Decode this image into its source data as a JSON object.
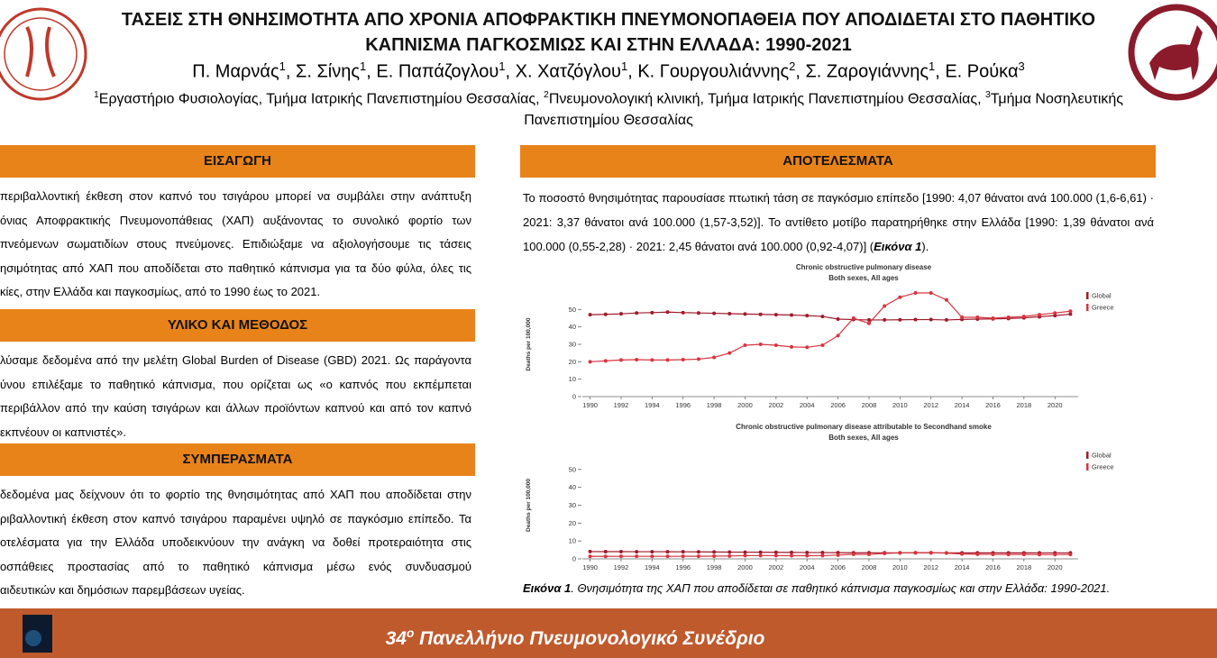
{
  "header": {
    "title": "ΤΑΣΕΙΣ ΣΤΗ ΘΝΗΣΙΜΟΤΗΤΑ ΑΠΟ ΧΡΟΝΙΑ ΑΠΟΦΡΑΚΤΙΚΗ ΠΝΕΥΜΟΝΟΠΑΘΕΙΑ ΠΟΥ ΑΠΟΔΙΔΕΤΑΙ ΣΤΟ ΠΑΘΗΤΙΚΟ ΚΑΠΝΙΣΜΑ ΠΑΓΚΟΣΜΙΩΣ ΚΑΙ ΣΤΗΝ ΕΛΛΑΔΑ: 1990-2021",
    "authors": [
      {
        "name": "Π. Μαρνάς",
        "sup": "1",
        "after": ","
      },
      {
        "name": "Σ. Σίνης",
        "sup": "1",
        "after": ","
      },
      {
        "name": "Ε. Παπάζογλου",
        "sup": "1",
        "after": ","
      },
      {
        "name": "Χ. Χατζόγλου",
        "sup": "1",
        "after": ","
      },
      {
        "name": "Κ. Γουργουλιάννης",
        "sup": "2",
        "after": ","
      },
      {
        "name": "Σ. Ζαρογιάννης",
        "sup": "1",
        "after": ","
      },
      {
        "name": "Ε. Ρούκα",
        "sup": "3"
      }
    ],
    "affiliations": [
      {
        "sup": "1",
        "text": "Εργαστήριο Φυσιολογίας, Τμήμα Ιατρικής Πανεπιστημίου Θεσσαλίας,"
      },
      {
        "sup": "2",
        "text": "Πνευμονολογική κλινική, Τμήμα Ιατρικής Πανεπιστημίου Θεσσαλίας,"
      },
      {
        "sup": "3",
        "text": "Τμήμα Νοσηλευτικής Πανεπιστημίου Θεσσαλίας"
      }
    ]
  },
  "sections": [
    {
      "heading": "ΕΙΣΑΓΩΓΗ",
      "lines": [
        "περιβαλλοντική έκθεση στον καπνό του τσιγάρου μπορεί να συμβάλει στην ανάπτυξη",
        "όνιας Αποφρακτικής Πνευμονοπάθειας (ΧΑΠ) αυξάνοντας το συνολικό φορτίο των",
        "πνεόμενων σωματιδίων στους πνεύμονες. Επιδιώξαμε να αξιολογήσουμε τις τάσεις",
        "ησιμότητας από ΧΑΠ που αποδίδεται στο παθητικό κάπνισμα για τα δύο φύλα, όλες τις",
        "κίες, στην Ελλάδα και παγκοσμίως, από το 1990 έως το 2021."
      ]
    },
    {
      "heading": "ΥΛΙΚΟ ΚΑΙ ΜΕΘΟΔΟΣ",
      "lines": [
        "λύσαμε δεδομένα από την μελέτη Global Burden of Disease (GBD) 2021. Ως παράγοντα",
        "ύνου επιλέξαμε το παθητικό κάπνισμα, που ορίζεται ως «ο καπνός που εκπέμπεται",
        "περιβάλλον από την καύση τσιγάρων και άλλων προϊόντων καπνού και από τον καπνό",
        "εκπνέουν οι καπνιστές»."
      ]
    },
    {
      "heading": "ΣΥΜΠΕΡΑΣΜΑΤΑ",
      "lines": [
        "δεδομένα μας δείχνουν ότι το φορτίο της θνησιμότητας από ΧΑΠ που αποδίδεται στην",
        "ριβαλλοντική έκθεση στον καπνό τσιγάρου παραμένει υψηλό σε παγκόσμιο επίπεδο. Τα",
        "οτελέσματα για την Ελλάδα υποδεικνύουν την ανάγκη να δοθεί προτεραιότητα στις",
        "οσπάθειες προστασίας από το παθητικό κάπνισμα μέσω ενός συνδυασμού",
        "αιδευτικών και δημόσιων παρεμβάσεων υγείας."
      ]
    }
  ],
  "results": {
    "heading": "ΑΠΟΤΕΛΕΣΜΑΤΑ",
    "text": "Το ποσοστό θνησιμότητας παρουσίασε πτωτική τάση σε παγκόσμιο επίπεδο [1990: 4,07 θάνατοι ανά 100.000 (1,6-6,61)  · 2021: 3,37 θάνατοι ανά 100.000 (1,57-3,52)]. Το αντίθετο μοτίβο παρατηρήθηκε στην Ελλάδα [1990: 1,39 θάνατοι ανά 100.000 (0,55-2,28) · 2021: 2,45 θάνατοι ανά 100.000 (0,92-4,07)] (",
    "emph": "Εικόνα 1",
    "after": ")."
  },
  "caption": {
    "label": "Εικόνα 1",
    "text": ". Θνησιμότητα της ΧΑΠ που αποδίδεται σε παθητικό κάπνισμα παγκοσμίως και στην Ελλάδα: 1990-2021."
  },
  "footer": {
    "number": "34",
    "sup": "ο",
    "text": "Πανελλήνιο Πνευμονολογικό Συνέδριο"
  },
  "chart_data": [
    {
      "type": "line",
      "title": "Chronic obstructive pulmonary disease",
      "subtitle": "Both sexes, All ages",
      "y_label": "Deaths per 100,000",
      "x": [
        1990,
        1991,
        1992,
        1993,
        1994,
        1995,
        1996,
        1997,
        1998,
        1999,
        2000,
        2001,
        2002,
        2003,
        2004,
        2005,
        2006,
        2007,
        2008,
        2009,
        2010,
        2011,
        2012,
        2013,
        2014,
        2015,
        2016,
        2017,
        2018,
        2019,
        2020,
        2021
      ],
      "xlim": [
        1989.5,
        2021.5
      ],
      "xticks": [
        1990,
        1992,
        1994,
        1996,
        1998,
        2000,
        2002,
        2004,
        2006,
        2008,
        2010,
        2012,
        2014,
        2016,
        2018,
        2020
      ],
      "ylim": [
        0,
        60
      ],
      "yticks": [
        0,
        10,
        20,
        30,
        40,
        50
      ],
      "legend": "right",
      "series": [
        {
          "name": "Global",
          "color": "#a01a2c",
          "values": [
            47,
            47.2,
            47.5,
            48,
            48.2,
            48.5,
            48.2,
            48,
            47.8,
            47.6,
            47.4,
            47.2,
            47,
            46.8,
            46.5,
            46,
            44.5,
            44.2,
            44,
            44,
            44.1,
            44.2,
            44.2,
            44,
            44.3,
            44.5,
            44.6,
            44.8,
            45.2,
            45.8,
            46.5,
            47.3
          ]
        },
        {
          "name": "Greece",
          "color": "#d8343f",
          "values": [
            20,
            20.5,
            21,
            21.2,
            21,
            21,
            21.2,
            21.5,
            22.5,
            25,
            29.5,
            30,
            29.5,
            28.5,
            28.3,
            29.5,
            35,
            45,
            42,
            52,
            57,
            59.5,
            59.5,
            55.5,
            45.5,
            45.5,
            45,
            45.5,
            46,
            47,
            48,
            49
          ]
        }
      ]
    },
    {
      "type": "line",
      "title": "Chronic obstructive pulmonary disease attributable to Secondhand smoke",
      "subtitle": "Both sexes, All ages",
      "y_label": "Deaths per 100,000",
      "x": [
        1990,
        1991,
        1992,
        1993,
        1994,
        1995,
        1996,
        1997,
        1998,
        1999,
        2000,
        2001,
        2002,
        2003,
        2004,
        2005,
        2006,
        2007,
        2008,
        2009,
        2010,
        2011,
        2012,
        2013,
        2014,
        2015,
        2016,
        2017,
        2018,
        2019,
        2020,
        2021
      ],
      "xlim": [
        1989.5,
        2021.5
      ],
      "xticks": [
        1990,
        1992,
        1994,
        1996,
        1998,
        2000,
        2002,
        2004,
        2006,
        2008,
        2010,
        2012,
        2014,
        2016,
        2018,
        2020
      ],
      "ylim": [
        0,
        60
      ],
      "yticks": [
        0,
        10,
        20,
        30,
        40,
        50
      ],
      "legend": "right",
      "series": [
        {
          "name": "Global",
          "color": "#a01a2c",
          "values": [
            4.07,
            4.05,
            4.02,
            4,
            4,
            3.98,
            3.95,
            3.9,
            3.85,
            3.8,
            3.75,
            3.7,
            3.65,
            3.6,
            3.55,
            3.5,
            3.45,
            3.42,
            3.4,
            3.38,
            3.38,
            3.37,
            3.36,
            3.35,
            3.35,
            3.34,
            3.34,
            3.35,
            3.35,
            3.36,
            3.36,
            3.37
          ]
        },
        {
          "name": "Greece",
          "color": "#d8343f",
          "values": [
            1.39,
            1.4,
            1.42,
            1.43,
            1.42,
            1.42,
            1.43,
            1.45,
            1.5,
            1.6,
            1.8,
            1.85,
            1.8,
            1.75,
            1.75,
            1.8,
            2.1,
            2.6,
            2.5,
            3,
            3.3,
            3.45,
            3.45,
            3.2,
            2.7,
            2.6,
            2.5,
            2.45,
            2.45,
            2.4,
            2.42,
            2.45
          ]
        }
      ]
    }
  ]
}
